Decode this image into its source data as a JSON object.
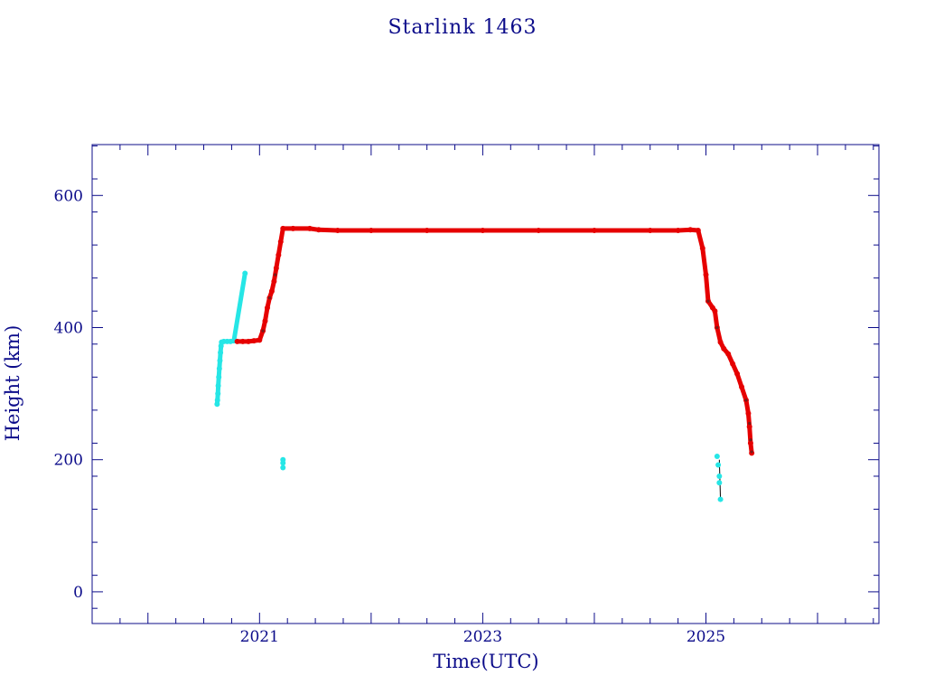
{
  "chart_data": {
    "type": "scatter",
    "title": "Starlink 1463",
    "xlabel": "Time(UTC)",
    "ylabel": "Height (km)",
    "xlim": [
      2019.5,
      2026.55
    ],
    "ylim": [
      -48,
      677
    ],
    "x_ticks": [
      2021,
      2023,
      2025
    ],
    "y_ticks": [
      0,
      200,
      400,
      600
    ],
    "grid": false,
    "colors": {
      "axis": "#0c0c8a",
      "primary": "#e60000",
      "secondary": "#26e6e6",
      "dark": "#7a1a1a"
    },
    "series": [
      {
        "color": "cyan",
        "points": [
          [
            2020.62,
            284
          ],
          [
            2020.623,
            290
          ],
          [
            2020.627,
            300
          ],
          [
            2020.63,
            312
          ],
          [
            2020.635,
            325
          ],
          [
            2020.64,
            338
          ],
          [
            2020.645,
            350
          ],
          [
            2020.65,
            362
          ],
          [
            2020.655,
            372
          ],
          [
            2020.66,
            378
          ],
          [
            2020.68,
            379
          ],
          [
            2020.71,
            379
          ],
          [
            2020.74,
            379
          ],
          [
            2020.77,
            380
          ],
          [
            2020.87,
            482
          ],
          [
            2021.21,
            200
          ],
          [
            2021.21,
            195
          ],
          [
            2021.21,
            188
          ],
          [
            2025.1,
            205
          ],
          [
            2025.11,
            192
          ],
          [
            2025.12,
            175
          ],
          [
            2025.12,
            165
          ],
          [
            2025.13,
            140
          ]
        ]
      },
      {
        "color": "red",
        "points": [
          [
            2020.8,
            379
          ],
          [
            2020.85,
            379
          ],
          [
            2020.9,
            379
          ],
          [
            2020.95,
            380
          ],
          [
            2021.0,
            381
          ],
          [
            2021.03,
            395
          ],
          [
            2021.05,
            410
          ],
          [
            2021.07,
            430
          ],
          [
            2021.09,
            445
          ],
          [
            2021.11,
            455
          ],
          [
            2021.13,
            470
          ],
          [
            2021.15,
            490
          ],
          [
            2021.17,
            510
          ],
          [
            2021.19,
            530
          ],
          [
            2021.21,
            550
          ],
          [
            2021.3,
            550
          ],
          [
            2021.45,
            550
          ],
          [
            2021.53,
            548
          ],
          [
            2021.7,
            547
          ],
          [
            2022.0,
            547
          ],
          [
            2022.5,
            547
          ],
          [
            2023.0,
            547
          ],
          [
            2023.5,
            547
          ],
          [
            2024.0,
            547
          ],
          [
            2024.5,
            547
          ],
          [
            2024.75,
            547
          ],
          [
            2024.86,
            548
          ],
          [
            2024.93,
            547
          ],
          [
            2024.97,
            520
          ],
          [
            2025.0,
            480
          ],
          [
            2025.02,
            440
          ],
          [
            2025.06,
            430
          ],
          [
            2025.08,
            425
          ],
          [
            2025.1,
            400
          ],
          [
            2025.13,
            378
          ],
          [
            2025.16,
            368
          ],
          [
            2025.2,
            360
          ],
          [
            2025.24,
            345
          ],
          [
            2025.28,
            330
          ],
          [
            2025.32,
            310
          ],
          [
            2025.36,
            290
          ],
          [
            2025.38,
            270
          ],
          [
            2025.39,
            250
          ],
          [
            2025.4,
            225
          ],
          [
            2025.41,
            210
          ]
        ]
      }
    ]
  }
}
